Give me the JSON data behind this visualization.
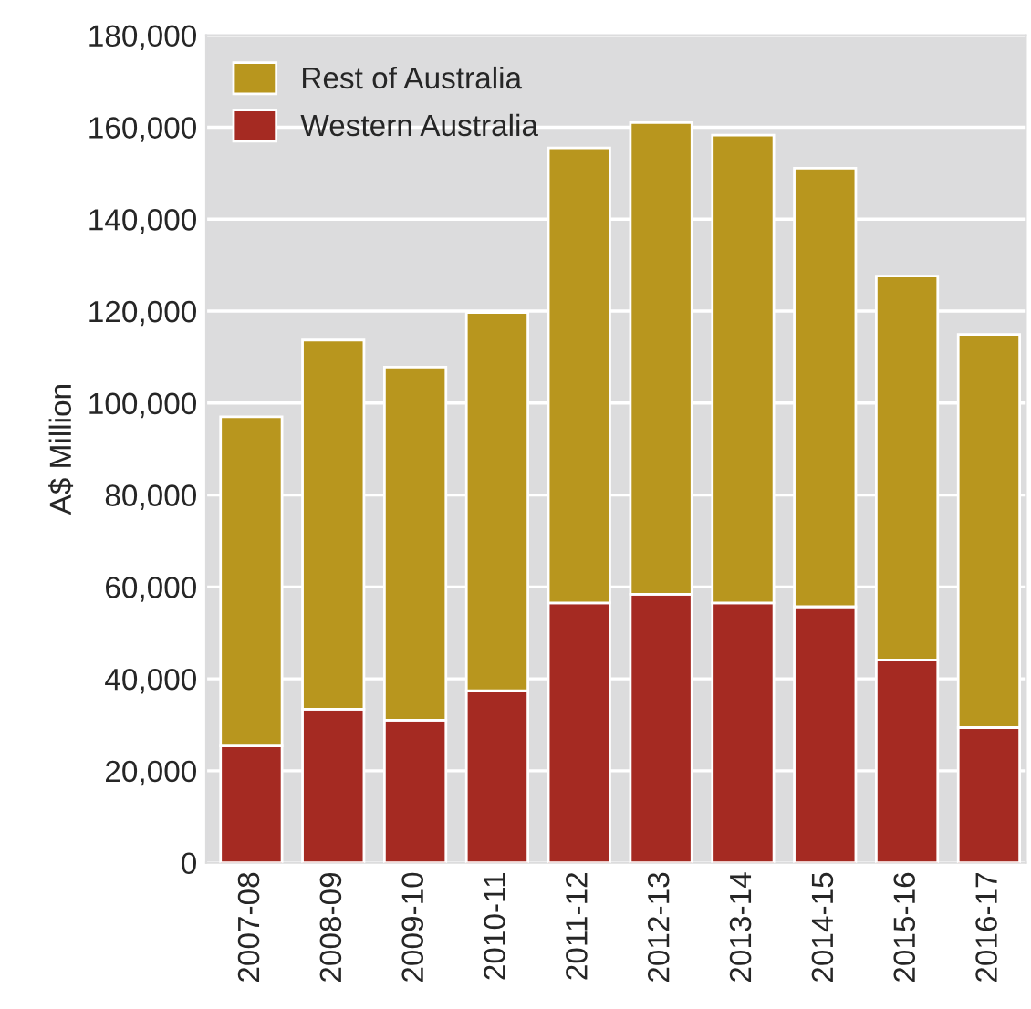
{
  "chart_data": {
    "type": "bar",
    "stacked": true,
    "ylabel": "A$ Million",
    "categories": [
      "2007-08",
      "2008-09",
      "2009-10",
      "2010-11",
      "2011-12",
      "2012-13",
      "2013-14",
      "2014-15",
      "2015-16",
      "2016-17"
    ],
    "series": [
      {
        "name": "Western Australia",
        "color": "#a52a22",
        "values": [
          25400,
          33400,
          31000,
          37400,
          56500,
          58400,
          56500,
          55700,
          44100,
          29400
        ]
      },
      {
        "name": "Rest of Australia",
        "color": "#b8961e",
        "values": [
          71600,
          80300,
          76800,
          82300,
          99000,
          102600,
          101800,
          95400,
          83500,
          85500
        ]
      }
    ],
    "ylim": [
      0,
      180000
    ],
    "yticks": [
      {
        "value": 0,
        "label": "0"
      },
      {
        "value": 20000,
        "label": "20,000"
      },
      {
        "value": 40000,
        "label": "40,000"
      },
      {
        "value": 60000,
        "label": "60,000"
      },
      {
        "value": 80000,
        "label": "80,000"
      },
      {
        "value": 100000,
        "label": "100,000"
      },
      {
        "value": 120000,
        "label": "120,000"
      },
      {
        "value": 140000,
        "label": "140,000"
      },
      {
        "value": 160000,
        "label": "160,000"
      },
      {
        "value": 180000,
        "label": "180,000"
      }
    ],
    "grid": "y",
    "legend": "top left"
  }
}
